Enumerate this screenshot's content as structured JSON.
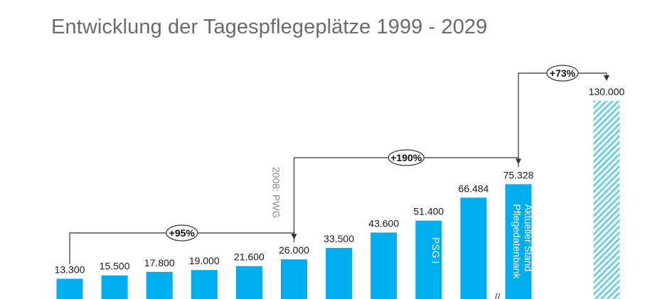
{
  "colors": {
    "bar": "#00AEEF",
    "hatch": "#6FCFE3",
    "title": "#6b6b6b",
    "bracket": "#333333"
  },
  "chart_data": {
    "type": "bar",
    "title": "Entwicklung der Tagespflegeplätze  1999 - 2029",
    "value_labels": [
      "13.300",
      "15.500",
      "17.800",
      "19.000",
      "21.600",
      "26.000",
      "33.500",
      "43.600",
      "51.400",
      "66.484",
      "75.328",
      "130.000"
    ],
    "values": [
      13300,
      15500,
      17800,
      19000,
      21600,
      26000,
      33500,
      43600,
      51400,
      66484,
      75328,
      130000
    ],
    "projected_index": 11,
    "axis_break_after_index": 9,
    "axis_break_mark": "//",
    "bar_annotations": [
      {
        "bar_index": 8,
        "text": "PSG I"
      },
      {
        "bar_index": 10,
        "lines": [
          "Aktueller Stand",
          "Pflegedatenbank"
        ]
      }
    ],
    "side_note": {
      "text": "2008: PWG",
      "bar_index": 5
    },
    "changes": [
      {
        "label": "+95%",
        "from_index": 0,
        "to_index": 5
      },
      {
        "label": "+190%",
        "from_index": 5,
        "to_index": 10
      },
      {
        "label": "+73%",
        "from_index": 10,
        "to_index": 11
      }
    ],
    "grid": false,
    "legend": "none"
  }
}
